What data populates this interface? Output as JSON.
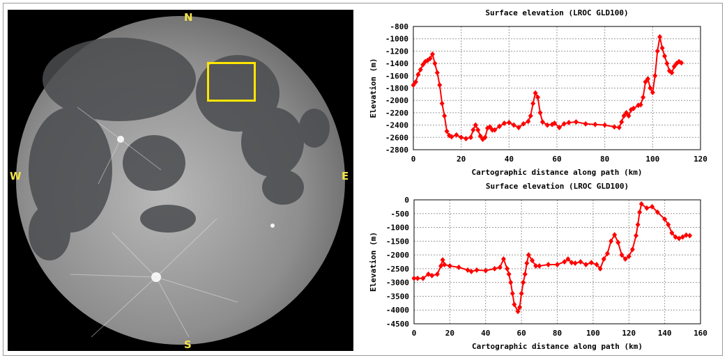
{
  "moon_view": {
    "labels": {
      "north": "N",
      "south": "S",
      "west": "W",
      "east": "E"
    },
    "selection_color": "#ffe600",
    "label_color": "#f2e24a"
  },
  "chart_data": [
    {
      "type": "line",
      "title": "Surface elevation (LROC GLD100)",
      "xlabel": "Cartographic distance along path (km)",
      "ylabel": "Elevation (m)",
      "xlim": [
        0,
        120
      ],
      "ylim": [
        -2800,
        -800
      ],
      "xticks": [
        0,
        20,
        40,
        60,
        80,
        100,
        120
      ],
      "yticks": [
        -800,
        -1000,
        -1200,
        -1400,
        -1600,
        -1800,
        -2000,
        -2200,
        -2400,
        -2600,
        -2800
      ],
      "grid": true,
      "marker": "diamond",
      "color": "#ff0000",
      "points": [
        [
          0,
          -1750
        ],
        [
          1,
          -1700
        ],
        [
          2,
          -1580
        ],
        [
          3,
          -1500
        ],
        [
          4,
          -1420
        ],
        [
          5,
          -1370
        ],
        [
          6,
          -1350
        ],
        [
          7,
          -1320
        ],
        [
          8,
          -1250
        ],
        [
          9,
          -1400
        ],
        [
          10,
          -1550
        ],
        [
          11,
          -1750
        ],
        [
          12,
          -2050
        ],
        [
          13,
          -2250
        ],
        [
          14,
          -2500
        ],
        [
          15,
          -2570
        ],
        [
          16,
          -2590
        ],
        [
          18,
          -2560
        ],
        [
          20,
          -2600
        ],
        [
          22,
          -2620
        ],
        [
          24,
          -2600
        ],
        [
          25,
          -2480
        ],
        [
          26,
          -2400
        ],
        [
          27,
          -2480
        ],
        [
          28,
          -2580
        ],
        [
          29,
          -2630
        ],
        [
          30,
          -2600
        ],
        [
          31,
          -2450
        ],
        [
          32,
          -2430
        ],
        [
          33,
          -2480
        ],
        [
          34,
          -2480
        ],
        [
          36,
          -2420
        ],
        [
          38,
          -2370
        ],
        [
          40,
          -2360
        ],
        [
          42,
          -2400
        ],
        [
          44,
          -2440
        ],
        [
          46,
          -2380
        ],
        [
          48,
          -2340
        ],
        [
          49,
          -2250
        ],
        [
          50,
          -2050
        ],
        [
          51,
          -1880
        ],
        [
          52,
          -1950
        ],
        [
          53,
          -2200
        ],
        [
          54,
          -2350
        ],
        [
          56,
          -2400
        ],
        [
          58,
          -2390
        ],
        [
          59,
          -2370
        ],
        [
          61,
          -2440
        ],
        [
          63,
          -2380
        ],
        [
          65,
          -2360
        ],
        [
          68,
          -2350
        ],
        [
          72,
          -2380
        ],
        [
          76,
          -2390
        ],
        [
          80,
          -2400
        ],
        [
          84,
          -2430
        ],
        [
          86,
          -2440
        ],
        [
          87,
          -2350
        ],
        [
          88,
          -2250
        ],
        [
          89,
          -2200
        ],
        [
          90,
          -2250
        ],
        [
          91,
          -2150
        ],
        [
          92,
          -2130
        ],
        [
          94,
          -2080
        ],
        [
          95,
          -2070
        ],
        [
          96,
          -1950
        ],
        [
          97,
          -1700
        ],
        [
          98,
          -1650
        ],
        [
          99,
          -1800
        ],
        [
          100,
          -1870
        ],
        [
          101,
          -1600
        ],
        [
          102,
          -1200
        ],
        [
          103,
          -970
        ],
        [
          104,
          -1150
        ],
        [
          105,
          -1280
        ],
        [
          106,
          -1400
        ],
        [
          107,
          -1520
        ],
        [
          108,
          -1550
        ],
        [
          109,
          -1450
        ],
        [
          110,
          -1400
        ],
        [
          111,
          -1370
        ],
        [
          112,
          -1390
        ]
      ]
    },
    {
      "type": "line",
      "title": "Surface elevation (LROC GLD100)",
      "xlabel": "Cartographic distance along path (km)",
      "ylabel": "Elevation (m)",
      "xlim": [
        0,
        160
      ],
      "ylim": [
        -4500,
        0
      ],
      "xticks": [
        0,
        20,
        40,
        60,
        80,
        100,
        120,
        140,
        160
      ],
      "yticks": [
        0,
        -500,
        -1000,
        -1500,
        -2000,
        -2500,
        -3000,
        -3500,
        -4000,
        -4500
      ],
      "grid": true,
      "marker": "diamond",
      "color": "#ff0000",
      "points": [
        [
          0,
          -2850
        ],
        [
          2,
          -2850
        ],
        [
          5,
          -2850
        ],
        [
          8,
          -2700
        ],
        [
          10,
          -2750
        ],
        [
          13,
          -2700
        ],
        [
          15,
          -2400
        ],
        [
          16,
          -2180
        ],
        [
          17,
          -2350
        ],
        [
          20,
          -2400
        ],
        [
          25,
          -2450
        ],
        [
          30,
          -2550
        ],
        [
          32,
          -2600
        ],
        [
          35,
          -2550
        ],
        [
          40,
          -2570
        ],
        [
          45,
          -2500
        ],
        [
          48,
          -2450
        ],
        [
          50,
          -2150
        ],
        [
          52,
          -2500
        ],
        [
          53,
          -2700
        ],
        [
          54,
          -3000
        ],
        [
          55,
          -3400
        ],
        [
          56,
          -3800
        ],
        [
          58,
          -4050
        ],
        [
          59,
          -3900
        ],
        [
          60,
          -3400
        ],
        [
          61,
          -3000
        ],
        [
          62,
          -2700
        ],
        [
          63,
          -2300
        ],
        [
          64,
          -2000
        ],
        [
          66,
          -2200
        ],
        [
          68,
          -2400
        ],
        [
          70,
          -2400
        ],
        [
          75,
          -2350
        ],
        [
          80,
          -2350
        ],
        [
          84,
          -2250
        ],
        [
          86,
          -2150
        ],
        [
          88,
          -2280
        ],
        [
          90,
          -2300
        ],
        [
          93,
          -2250
        ],
        [
          96,
          -2350
        ],
        [
          99,
          -2280
        ],
        [
          102,
          -2350
        ],
        [
          104,
          -2500
        ],
        [
          106,
          -2150
        ],
        [
          108,
          -1950
        ],
        [
          110,
          -1500
        ],
        [
          112,
          -1270
        ],
        [
          114,
          -1550
        ],
        [
          116,
          -2000
        ],
        [
          118,
          -2150
        ],
        [
          120,
          -2050
        ],
        [
          122,
          -1800
        ],
        [
          124,
          -1300
        ],
        [
          125,
          -900
        ],
        [
          126,
          -450
        ],
        [
          127,
          -150
        ],
        [
          130,
          -300
        ],
        [
          133,
          -250
        ],
        [
          136,
          -450
        ],
        [
          140,
          -700
        ],
        [
          142,
          -900
        ],
        [
          144,
          -1200
        ],
        [
          146,
          -1350
        ],
        [
          148,
          -1400
        ],
        [
          150,
          -1350
        ],
        [
          152,
          -1280
        ],
        [
          154,
          -1300
        ]
      ]
    }
  ]
}
